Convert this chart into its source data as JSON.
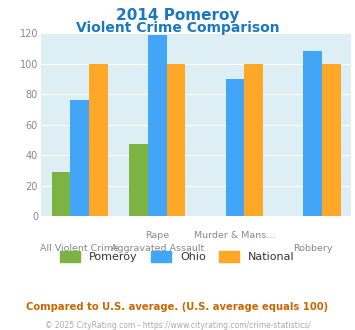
{
  "title_line1": "2014 Pomeroy",
  "title_line2": "Violent Crime Comparison",
  "series": [
    {
      "name": "Pomeroy",
      "values": [
        29,
        47,
        0,
        0
      ],
      "color": "#7cb342"
    },
    {
      "name": "Ohio",
      "values": [
        76,
        119,
        90,
        108
      ],
      "color": "#42a5f5"
    },
    {
      "name": "National",
      "values": [
        100,
        100,
        100,
        100
      ],
      "color": "#ffa726"
    }
  ],
  "top_xlabels": [
    null,
    "Rape",
    "Murder & Mans...",
    null
  ],
  "bottom_xlabels": [
    "All Violent Crime",
    "Aggravated Assault",
    null,
    "Robbery"
  ],
  "ylim": [
    0,
    120
  ],
  "yticks": [
    0,
    20,
    40,
    60,
    80,
    100,
    120
  ],
  "plot_bg_color": "#ddeef5",
  "title_color": "#1a78c2",
  "tick_label_color": "#888888",
  "footnote1": "Compared to U.S. average. (U.S. average equals 100)",
  "footnote2": "© 2025 CityRating.com - https://www.cityrating.com/crime-statistics/",
  "footnote1_color": "#cc6600",
  "footnote2_color": "#aaaaaa",
  "grid_color": "#ffffff"
}
